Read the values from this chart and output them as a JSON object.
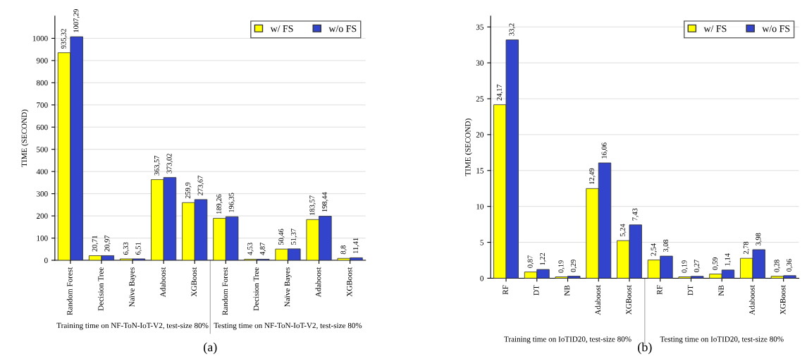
{
  "chart_data": [
    {
      "type": "bar",
      "ylabel": "TIME (SECOND)",
      "categories": [
        "Random Forest",
        "Decision Tree",
        "Naïve Bayes",
        "Adaboost",
        "XGBoost",
        "Random Forest",
        "Decision Tree",
        "Naïve Bayes",
        "Adaboost",
        "XGBoost"
      ],
      "series": [
        {
          "name": "w/ FS",
          "color": "#ffff00",
          "values": [
            935.32,
            20.71,
            6.33,
            363.57,
            259.9,
            189.26,
            4.53,
            50.46,
            183.57,
            8.8
          ],
          "value_labels": [
            "935,32",
            "20,71",
            "6,33",
            "363,57",
            "259,9",
            "189,26",
            "4,53",
            "50,46",
            "183,57",
            "8,8"
          ]
        },
        {
          "name": "w/o FS",
          "color": "#3344cc",
          "values": [
            1007.29,
            20.97,
            6.51,
            373.02,
            273.67,
            196.35,
            4.87,
            51.37,
            198.44,
            11.41
          ],
          "value_labels": [
            "1007,29",
            "20,97",
            "6,51",
            "373,02",
            "273,67",
            "196,35",
            "4,87",
            "51,37",
            "198,44",
            "11,41"
          ]
        }
      ],
      "ylim": [
        0,
        1100
      ],
      "yticks": [
        0,
        100,
        200,
        300,
        400,
        500,
        600,
        700,
        800,
        900,
        1000
      ],
      "grid": "y",
      "legend": "top right",
      "annotations": [
        "Training time on NF-ToN-IoT-V2, test-size 80%",
        "Testing time on NF-ToN-IoT-V2, test-size 80%",
        "(a)"
      ]
    },
    {
      "type": "bar",
      "ylabel": "TIME (SECOND)",
      "categories": [
        "RF",
        "DT",
        "NB",
        "Adaboost",
        "XGBoost",
        "RF",
        "DT",
        "NB",
        "Adaboost",
        "XGBoost"
      ],
      "series": [
        {
          "name": "w/ FS",
          "color": "#ffff00",
          "values": [
            24.17,
            0.87,
            0.19,
            12.49,
            5.24,
            2.54,
            0.19,
            0.59,
            2.78,
            0.28
          ],
          "value_labels": [
            "24,17",
            "0,87",
            "0,19",
            "12,49",
            "5,24",
            "2,54",
            "0,19",
            "0,59",
            "2,78",
            "0,28"
          ]
        },
        {
          "name": "w/o FS",
          "color": "#3344cc",
          "values": [
            33.2,
            1.22,
            0.29,
            16.06,
            7.43,
            3.08,
            0.27,
            1.14,
            3.98,
            0.36
          ],
          "value_labels": [
            "33,2",
            "1,22",
            "0,29",
            "16,06",
            "7,43",
            "3,08",
            "0,27",
            "1,14",
            "3,98",
            "0,36"
          ]
        }
      ],
      "ylim": [
        0,
        36.5
      ],
      "yticks": [
        0,
        5,
        10,
        15,
        20,
        25,
        30,
        35
      ],
      "grid": "y",
      "legend": "top right",
      "annotations": [
        "Training time on IoTID20, test-size 80%",
        "Testing time on IoTID20, test-size 80%",
        "(b)"
      ]
    }
  ]
}
